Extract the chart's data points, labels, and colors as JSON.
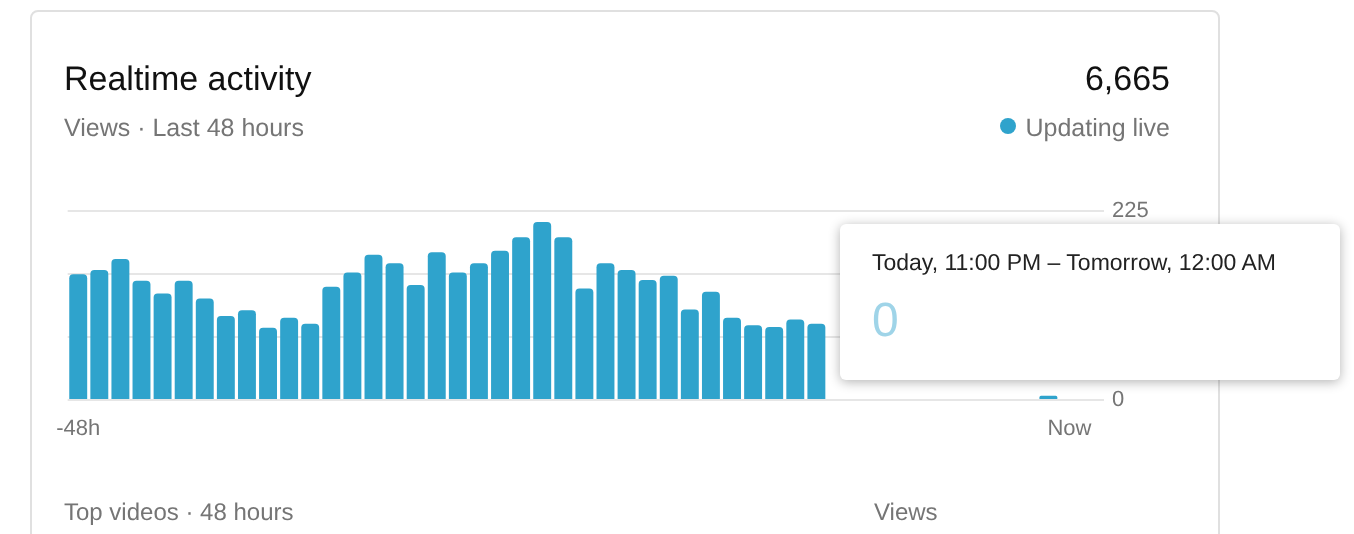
{
  "chart_data": {
    "type": "bar",
    "title": "Realtime activity",
    "subtitle": "Views · Last 48 hours",
    "annotations": [
      "6,665",
      "Updating live",
      "Today, 11:00 PM – Tomorrow, 12:00 AM",
      "0",
      "Top videos · 48 hours",
      "Views"
    ],
    "categories": [
      "-48h",
      null,
      null,
      null,
      null,
      null,
      null,
      null,
      null,
      null,
      null,
      null,
      null,
      null,
      null,
      null,
      null,
      null,
      null,
      null,
      null,
      null,
      null,
      null,
      null,
      null,
      null,
      null,
      null,
      null,
      null,
      null,
      null,
      null,
      null,
      null,
      null,
      null,
      null,
      null,
      null,
      null,
      null,
      null,
      null,
      null,
      null,
      "Now"
    ],
    "values": [
      150,
      155,
      168,
      142,
      127,
      142,
      121,
      100,
      107,
      86,
      98,
      91,
      135,
      152,
      173,
      163,
      137,
      176,
      152,
      163,
      178,
      194,
      212,
      194,
      133,
      163,
      155,
      143,
      148,
      108,
      129,
      98,
      89,
      87,
      96,
      91,
      null,
      null,
      null,
      null,
      null,
      null,
      null,
      null,
      null,
      null,
      5,
      0
    ],
    "color": "#2fa3cc",
    "ylim": [
      0,
      225
    ],
    "yticks": [
      0,
      {
        "value": 75,
        "label": null
      },
      {
        "value": 150,
        "label": null
      },
      225
    ],
    "grid": "y"
  }
}
